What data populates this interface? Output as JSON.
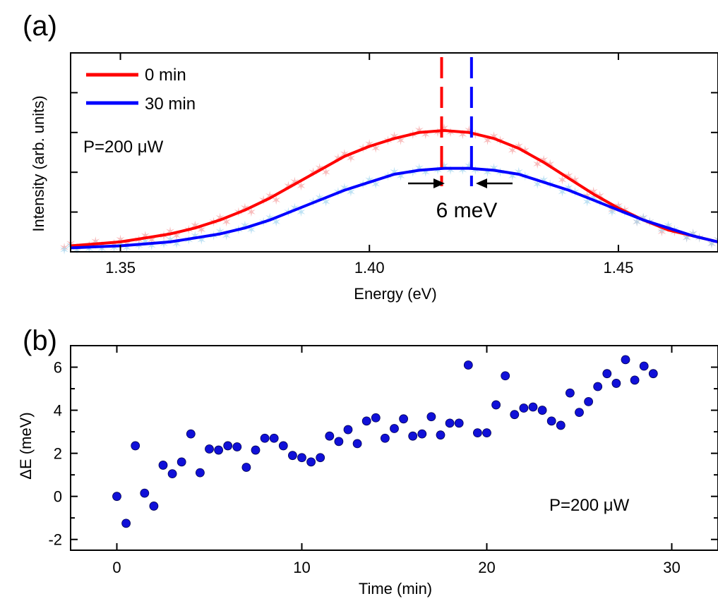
{
  "chart_data": [
    {
      "panel_label": "(a)",
      "type": "line",
      "xlabel": "Energy (eV)",
      "ylabel": "Intensity (arb. units)",
      "xlim": [
        1.34,
        1.47
      ],
      "ylim": [
        0,
        1
      ],
      "x_ticks": [
        "1.35",
        "1.40",
        "1.45"
      ],
      "x_tick_values": [
        1.35,
        1.4,
        1.45
      ],
      "y_tick_labels_shown": false,
      "annotation_power": "P=200 μW",
      "annotation_shift": "6 meV",
      "legend_position": "top-left",
      "peak_markers": [
        {
          "x": 1.4145,
          "color": "#ff0000"
        },
        {
          "x": 1.4205,
          "color": "#0000ff"
        }
      ],
      "series": [
        {
          "name": "0 min",
          "color": "#ff0000",
          "scatter_color": "#f5a5a5",
          "x": [
            1.34,
            1.345,
            1.35,
            1.355,
            1.36,
            1.365,
            1.37,
            1.375,
            1.38,
            1.385,
            1.39,
            1.395,
            1.4,
            1.405,
            1.41,
            1.415,
            1.42,
            1.425,
            1.43,
            1.435,
            1.44,
            1.445,
            1.45,
            1.455,
            1.46,
            1.465,
            1.47
          ],
          "values": [
            0.03,
            0.04,
            0.05,
            0.07,
            0.09,
            0.12,
            0.16,
            0.21,
            0.27,
            0.34,
            0.41,
            0.48,
            0.53,
            0.57,
            0.6,
            0.61,
            0.6,
            0.57,
            0.52,
            0.45,
            0.37,
            0.29,
            0.22,
            0.16,
            0.11,
            0.08,
            0.05
          ]
        },
        {
          "name": "30 min",
          "color": "#0000ff",
          "scatter_color": "#a8d8f0",
          "x": [
            1.34,
            1.345,
            1.35,
            1.355,
            1.36,
            1.365,
            1.37,
            1.375,
            1.38,
            1.385,
            1.39,
            1.395,
            1.4,
            1.405,
            1.41,
            1.415,
            1.42,
            1.425,
            1.43,
            1.435,
            1.44,
            1.445,
            1.45,
            1.455,
            1.46,
            1.465,
            1.47
          ],
          "values": [
            0.02,
            0.025,
            0.03,
            0.04,
            0.05,
            0.07,
            0.09,
            0.12,
            0.16,
            0.21,
            0.26,
            0.31,
            0.35,
            0.39,
            0.41,
            0.42,
            0.42,
            0.41,
            0.39,
            0.35,
            0.31,
            0.26,
            0.21,
            0.16,
            0.12,
            0.08,
            0.05
          ]
        }
      ]
    },
    {
      "panel_label": "(b)",
      "type": "scatter",
      "xlabel": "Time (min)",
      "ylabel": "ΔE (meV)",
      "xlim": [
        -2.5,
        32.5
      ],
      "ylim": [
        -2.5,
        7
      ],
      "x_ticks": [
        "0",
        "10",
        "20",
        "30"
      ],
      "x_tick_values": [
        0,
        10,
        20,
        30
      ],
      "y_ticks": [
        "-2",
        "0",
        "2",
        "4",
        "6"
      ],
      "y_tick_values": [
        -2,
        0,
        2,
        4,
        6
      ],
      "annotation_power": "P=200 μW",
      "marker_color": "#1010d8",
      "series": [
        {
          "x": [
            0,
            0.5,
            1,
            1.5,
            2,
            2.5,
            3,
            3.5,
            4,
            4.5,
            5,
            5.5,
            6,
            6.5,
            7,
            7.5,
            8,
            8.5,
            9,
            9.5,
            10,
            10.5,
            11,
            11.5,
            12,
            12.5,
            13,
            13.5,
            14,
            14.5,
            15,
            15.5,
            16,
            16.5,
            17,
            17.5,
            18,
            18.5,
            19,
            19.5,
            20,
            20.5,
            21,
            21.5,
            22,
            22.5,
            23,
            23.5,
            24,
            24.5,
            25,
            25.5,
            26,
            26.5,
            27,
            27.5,
            28,
            28.5,
            29
          ],
          "values": [
            0,
            -1.25,
            2.35,
            0.15,
            -0.45,
            1.45,
            1.05,
            1.6,
            2.9,
            1.1,
            2.2,
            2.15,
            2.35,
            2.3,
            1.35,
            2.15,
            2.7,
            2.7,
            2.35,
            1.9,
            1.8,
            1.6,
            1.8,
            2.8,
            2.55,
            3.1,
            2.45,
            3.5,
            3.65,
            2.7,
            3.15,
            3.6,
            2.8,
            2.9,
            3.7,
            2.85,
            3.4,
            3.4,
            6.1,
            2.95,
            2.95,
            4.25,
            5.6,
            3.8,
            4.1,
            4.15,
            4.0,
            3.5,
            3.3,
            4.8,
            3.9,
            4.4,
            5.1,
            5.7,
            5.25,
            6.35,
            5.4,
            6.05,
            5.7
          ]
        }
      ]
    }
  ]
}
